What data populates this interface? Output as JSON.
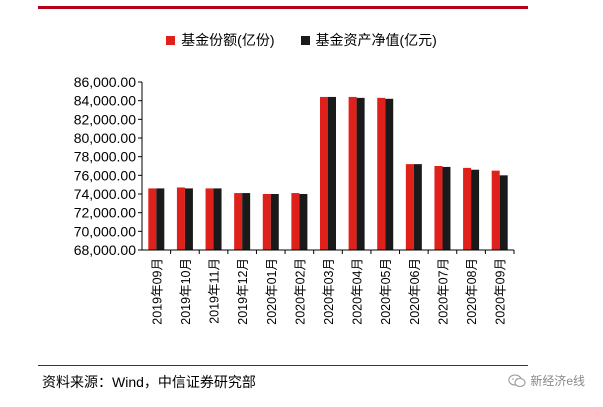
{
  "chart_data": {
    "type": "bar",
    "categories": [
      "2019年09月",
      "2019年10月",
      "2019年11月",
      "2019年12月",
      "2020年01月",
      "2020年02月",
      "2020年03月",
      "2020年04月",
      "2020年05月",
      "2020年06月",
      "2020年07月",
      "2020年08月",
      "2020年09月"
    ],
    "series": [
      {
        "name": "基金份额(亿份)",
        "color": "#e0201b",
        "values": [
          74600,
          74700,
          74600,
          74100,
          74000,
          74100,
          84400,
          84400,
          84300,
          77200,
          77000,
          76800,
          76500
        ]
      },
      {
        "name": "基金资产净值(亿元)",
        "color": "#1a1a1a",
        "values": [
          74600,
          74600,
          74600,
          74100,
          74000,
          74000,
          84400,
          84300,
          84200,
          77200,
          76900,
          76600,
          76000
        ]
      }
    ],
    "yticks": [
      "68,000.00",
      "70,000.00",
      "72,000.00",
      "74,000.00",
      "76,000.00",
      "78,000.00",
      "80,000.00",
      "82,000.00",
      "84,000.00",
      "86,000.00"
    ],
    "ylim": [
      68000,
      86000
    ],
    "legend_position": "top-center",
    "grid": false
  },
  "source_text": "资料来源：Wind，中信证券研究部",
  "watermark_text": "新经济e线",
  "watermark_icon": "wechat-icon"
}
